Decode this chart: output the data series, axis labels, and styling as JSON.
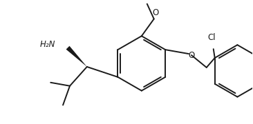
{
  "background": "#ffffff",
  "line_color": "#1a1a1a",
  "line_width": 1.4,
  "text_color": "#1a1a1a",
  "font_size": 8.5,
  "figsize": [
    3.66,
    1.8
  ],
  "dpi": 100,
  "xlim": [
    0,
    366
  ],
  "ylim": [
    0,
    180
  ]
}
